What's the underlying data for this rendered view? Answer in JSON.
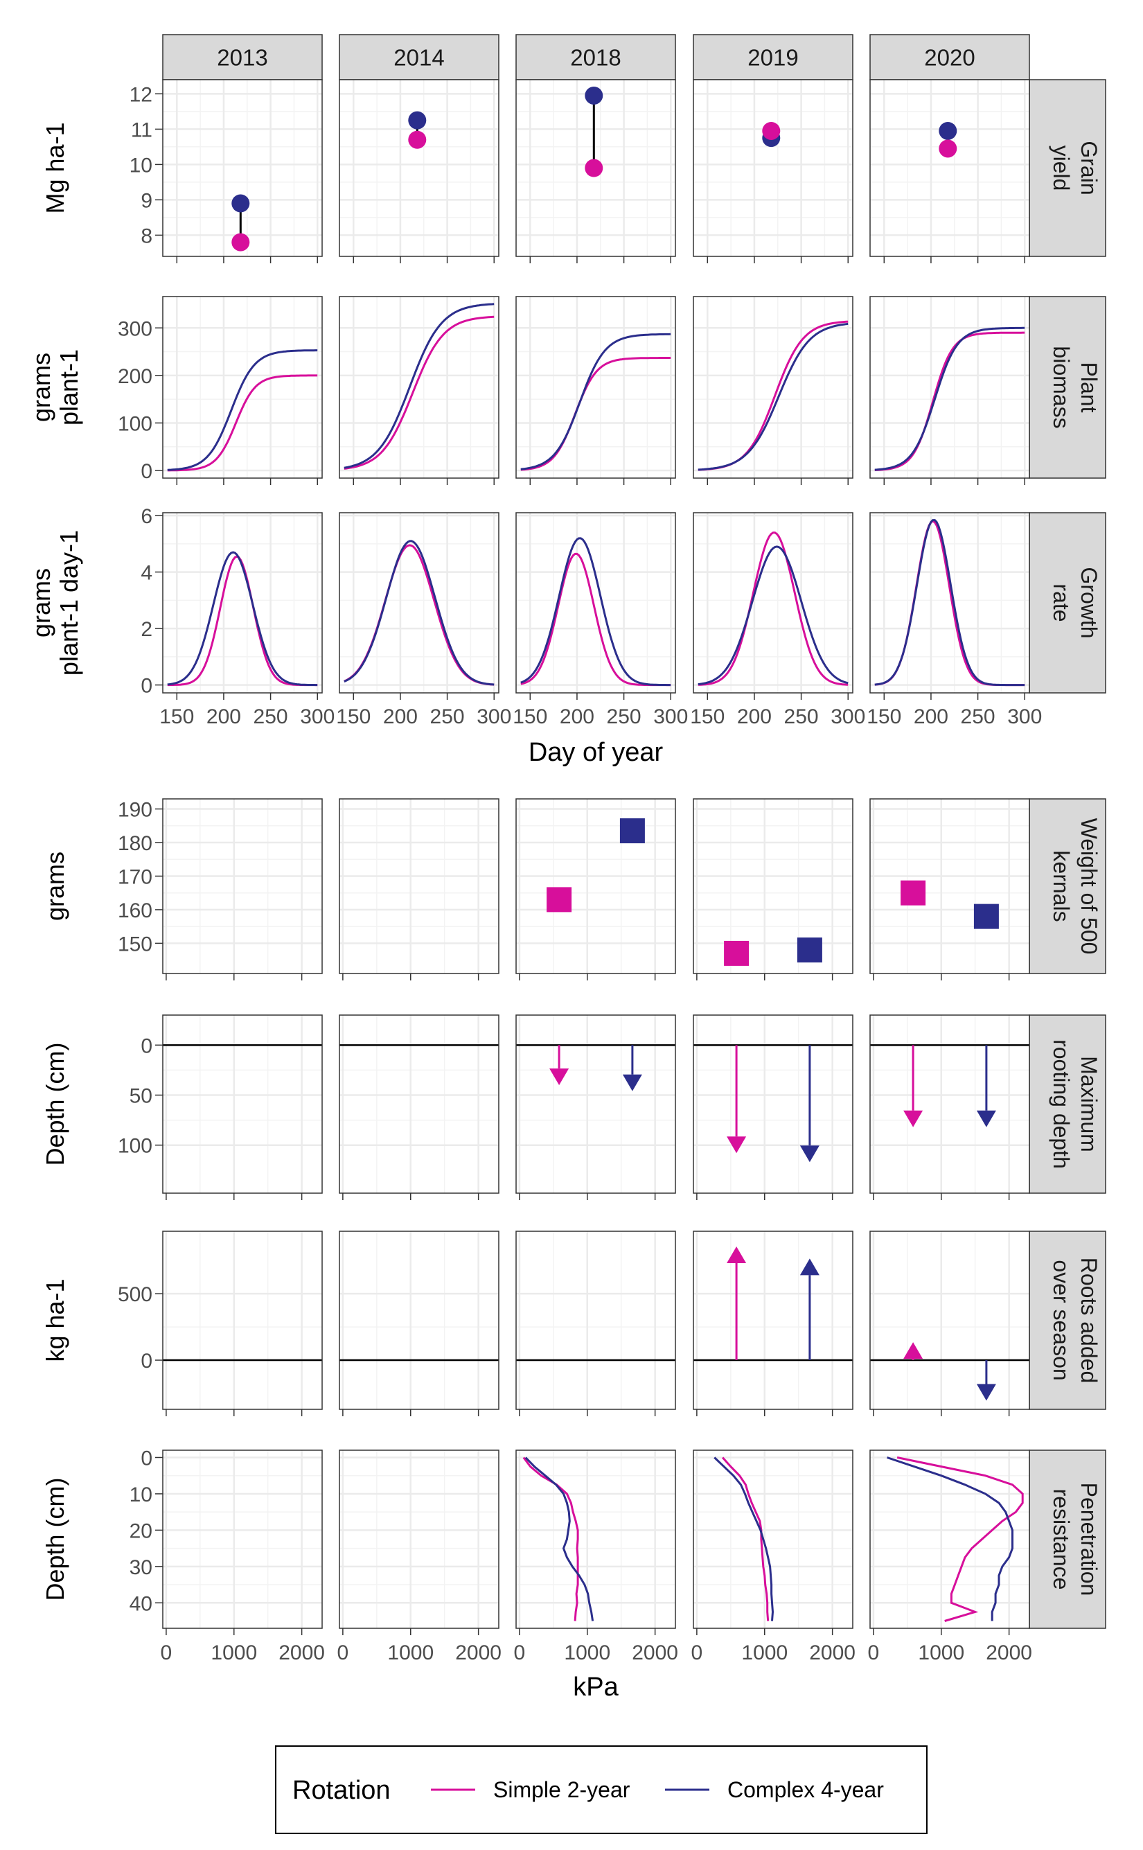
{
  "colors": {
    "simple": "#d70f9b",
    "complex": "#2b2e8c",
    "strip_fill": "#d9d9d9",
    "grid": "#ebebeb",
    "panel_border": "#333333",
    "zero_line": "#000000",
    "tick_text": "#4d4d4d"
  },
  "legend": {
    "title": "Rotation",
    "entries": [
      {
        "label": "Simple 2-year",
        "series": "simple"
      },
      {
        "label": "Complex 4-year",
        "series": "complex"
      }
    ]
  },
  "chart_data": [
    {
      "type": "line",
      "group": "top",
      "years": [
        "2013",
        "2014",
        "2018",
        "2019",
        "2020"
      ],
      "xlabel": "Day of year",
      "x_ticks": [
        "150",
        "200",
        "250",
        "300"
      ],
      "xlim": [
        135,
        305
      ],
      "rows": [
        {
          "id": "grain",
          "strip_label": [
            "Grain",
            "yield"
          ],
          "ylabel": [
            "Mg ha-1"
          ],
          "ylim": [
            7.4,
            12.4
          ],
          "y_ticks": [
            8,
            9,
            10,
            11,
            12
          ],
          "mark": "dumbbell",
          "day": 218,
          "values": {
            "simple": [
              7.8,
              10.7,
              9.9,
              10.95,
              10.45
            ],
            "complex": [
              8.9,
              11.25,
              11.95,
              10.75,
              10.95
            ]
          }
        },
        {
          "id": "biomass",
          "strip_label": [
            "Plant",
            "biomass"
          ],
          "ylabel": [
            "grams",
            "plant-1"
          ],
          "ylim": [
            -16,
            366
          ],
          "y_ticks": [
            0,
            100,
            200,
            300
          ],
          "mark": "logistic",
          "params": {
            "simple": [
              [
                200,
                213,
                10.5
              ],
              [
                325,
                213,
                16.5
              ],
              [
                237,
                198,
                11.5
              ],
              [
                315,
                222,
                15
              ],
              [
                290,
                202,
                10.5
              ]
            ],
            "complex": [
              [
                253,
                208,
                12.5
              ],
              [
                352,
                210,
                17
              ],
              [
                287,
                203,
                13.5
              ],
              [
                312,
                226,
                16.5
              ],
              [
                300,
                204,
                12
              ]
            ]
          }
        },
        {
          "id": "growth",
          "strip_label": [
            "Growth",
            "rate"
          ],
          "ylabel": [
            "grams",
            "plant-1 day-1"
          ],
          "ylim": [
            -0.28,
            6.1
          ],
          "y_ticks": [
            0,
            2,
            4,
            6
          ],
          "mark": "gaussian",
          "params": {
            "simple": [
              [
                4.55,
                214,
                17.5
              ],
              [
                4.95,
                210,
                26
              ],
              [
                4.65,
                199,
                19
              ],
              [
                5.4,
                221,
                22
              ],
              [
                5.8,
                202,
                17.5
              ]
            ],
            "complex": [
              [
                4.7,
                210,
                21
              ],
              [
                5.1,
                211,
                26
              ],
              [
                5.2,
                203,
                22
              ],
              [
                4.9,
                224,
                26
              ],
              [
                5.85,
                203,
                18
              ]
            ]
          }
        }
      ]
    },
    {
      "type": "scatter",
      "group": "bottom",
      "years": [
        "2013",
        "2014",
        "2018",
        "2019",
        "2020"
      ],
      "xlabel": "kPa",
      "x_ticks": [
        "0",
        "1000",
        "2000"
      ],
      "xlim": [
        -50,
        2300
      ],
      "rows": [
        {
          "id": "kernel",
          "strip_label": [
            "Weight of 500",
            "kernals"
          ],
          "ylabel": [
            "grams"
          ],
          "ylim": [
            141,
            193
          ],
          "y_ticks": [
            150,
            160,
            170,
            180,
            190
          ],
          "mark": "square",
          "values": {
            "simple": [
              null,
              null,
              163,
              147,
              165
            ],
            "complex": [
              null,
              null,
              183.5,
              148,
              158
            ]
          }
        },
        {
          "id": "rooting",
          "strip_label": [
            "Maximum",
            "rooting depth"
          ],
          "ylabel": [
            "Depth (cm)"
          ],
          "ylim": [
            -30,
            148
          ],
          "reverse": true,
          "y_ticks": [
            0,
            50,
            100
          ],
          "mark": "arrow",
          "values": {
            "simple": [
              null,
              null,
              40,
              108,
              82
            ],
            "complex": [
              null,
              null,
              46,
              117,
              82
            ]
          }
        },
        {
          "id": "roots",
          "strip_label": [
            "Roots added",
            "over season"
          ],
          "ylabel": [
            "kg ha-1"
          ],
          "ylim": [
            -370,
            970
          ],
          "y_ticks": [
            0,
            500
          ],
          "mark": "arrow",
          "values": {
            "simple": [
              null,
              null,
              null,
              855,
              135
            ],
            "complex": [
              null,
              null,
              null,
              765,
              -305
            ]
          }
        },
        {
          "id": "penetration",
          "strip_label": [
            "Penetration",
            "resistance"
          ],
          "ylabel": [
            "Depth (cm)"
          ],
          "ylim": [
            -2,
            47
          ],
          "reverse": true,
          "y_ticks": [
            0,
            10,
            20,
            30,
            40
          ],
          "mark": "profile",
          "depths": [
            0,
            2.5,
            5,
            7.5,
            10,
            12.5,
            15,
            17.5,
            20,
            22.5,
            25,
            27.5,
            30,
            32.5,
            35,
            37.5,
            40,
            42.5,
            45
          ],
          "values": {
            "simple": [
              null,
              null,
              [
                60,
                160,
                320,
                550,
                700,
                760,
                790,
                830,
                860,
                860,
                850,
                860,
                860,
                860,
                860,
                840,
                850,
                830,
                820
              ],
              [
                380,
                500,
                630,
                720,
                760,
                810,
                870,
                930,
                950,
                950,
                960,
                970,
                980,
                1000,
                1010,
                1030,
                1040,
                1040,
                1050
              ],
              [
                350,
                1000,
                1650,
                2050,
                2200,
                2200,
                2100,
                1900,
                1750,
                1600,
                1450,
                1350,
                1300,
                1250,
                1200,
                1150,
                1150,
                1500,
                1050
              ]
            ],
            "complex": [
              null,
              null,
              [
                90,
                220,
                380,
                540,
                650,
                700,
                730,
                740,
                720,
                700,
                650,
                700,
                780,
                880,
                960,
                1010,
                1030,
                1060,
                1080
              ],
              [
                260,
                400,
                540,
                650,
                710,
                760,
                820,
                880,
                940,
                980,
                1020,
                1050,
                1080,
                1090,
                1100,
                1100,
                1110,
                1120,
                1110
              ],
              [
                200,
                600,
                1000,
                1350,
                1650,
                1850,
                1950,
                2000,
                2050,
                2050,
                2050,
                2000,
                1900,
                1850,
                1850,
                1800,
                1800,
                1750,
                1750
              ]
            ]
          }
        }
      ]
    }
  ]
}
